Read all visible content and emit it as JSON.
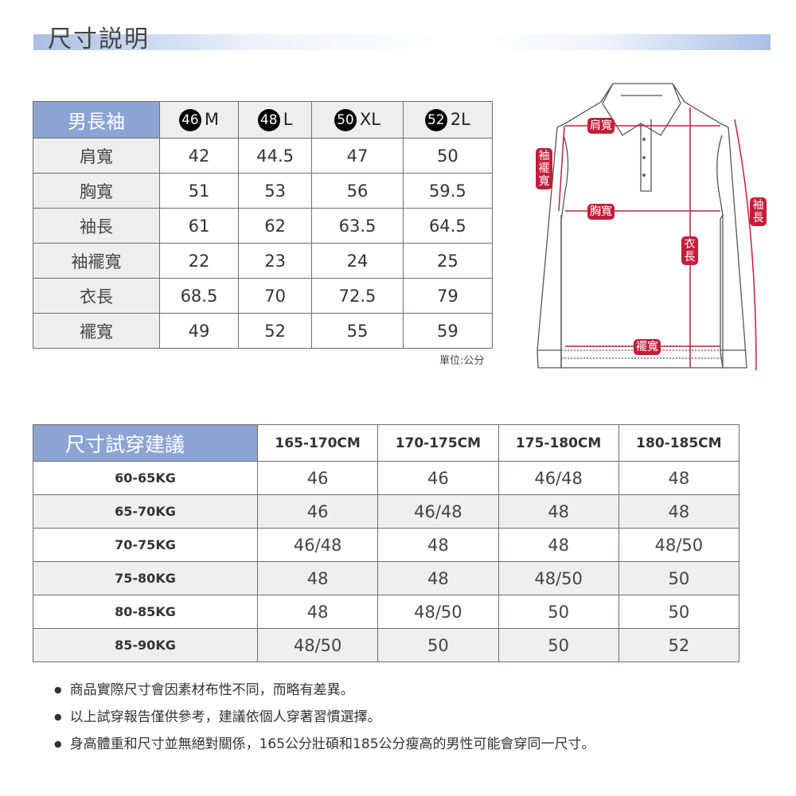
{
  "title": "尺寸説明",
  "size_table": {
    "corner": "男長袖",
    "columns": [
      {
        "num": "46",
        "size": "M"
      },
      {
        "num": "48",
        "size": "L"
      },
      {
        "num": "50",
        "size": "XL"
      },
      {
        "num": "52",
        "size": "2L"
      }
    ],
    "rows": [
      {
        "label": "肩寬",
        "values": [
          "42",
          "44.5",
          "47",
          "50"
        ]
      },
      {
        "label": "胸寬",
        "values": [
          "51",
          "53",
          "56",
          "59.5"
        ]
      },
      {
        "label": "袖長",
        "values": [
          "61",
          "62",
          "63.5",
          "64.5"
        ]
      },
      {
        "label": "袖襬寬",
        "values": [
          "22",
          "23",
          "24",
          "25"
        ]
      },
      {
        "label": "衣長",
        "values": [
          "68.5",
          "70",
          "72.5",
          "79"
        ]
      },
      {
        "label": "襬寬",
        "values": [
          "49",
          "52",
          "55",
          "59"
        ]
      }
    ],
    "unit": "單位:公分"
  },
  "diagram": {
    "labels": {
      "shoulder": "肩寬",
      "chest": "胸寬",
      "cuff": "袖襬寬",
      "length": "衣長",
      "sleeve": "袖長",
      "hem": "襬寬"
    },
    "accent": "#c41e3a"
  },
  "fit_table": {
    "corner": "尺寸試穿建議",
    "columns": [
      "165-170CM",
      "170-175CM",
      "175-180CM",
      "180-185CM"
    ],
    "rows": [
      {
        "label": "60-65KG",
        "values": [
          "46",
          "46",
          "46/48",
          "48"
        ]
      },
      {
        "label": "65-70KG",
        "values": [
          "46",
          "46/48",
          "48",
          "48"
        ]
      },
      {
        "label": "70-75KG",
        "values": [
          "46/48",
          "48",
          "48",
          "48/50"
        ]
      },
      {
        "label": "75-80KG",
        "values": [
          "48",
          "48",
          "48/50",
          "50"
        ]
      },
      {
        "label": "80-85KG",
        "values": [
          "48",
          "48/50",
          "50",
          "50"
        ]
      },
      {
        "label": "85-90KG",
        "values": [
          "48/50",
          "50",
          "50",
          "52"
        ]
      }
    ]
  },
  "notes": [
    "商品實際尺寸會因素材布性不同，而略有差異。",
    "以上試穿報告僅供參考，建議依個人穿著習慣選擇。",
    "身高體重和尺寸並無絕對關係，165公分壯碩和185公分瘦高的男性可能會穿同一尺寸。"
  ]
}
